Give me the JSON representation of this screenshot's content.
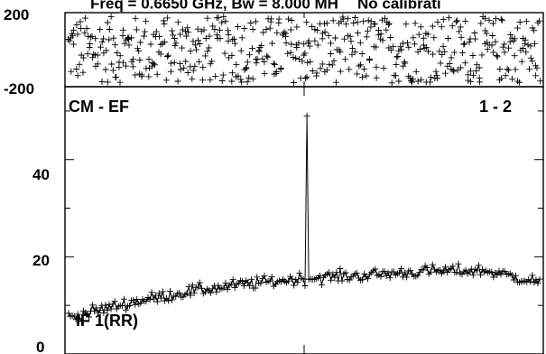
{
  "header": {
    "title": "Freq = 0.6650 GHz, Bw = 8.000 MH",
    "note": "No calibrati"
  },
  "chart_data": [
    {
      "type": "scatter",
      "panel": "phase",
      "ylim": [
        -200,
        200
      ],
      "y_tick_labels": [
        "200",
        "-200"
      ],
      "x_channels": 256,
      "phase_spread": 180,
      "grid": false
    },
    {
      "type": "line",
      "panel": "amplitude",
      "ylim": [
        0,
        55
      ],
      "y_tick_labels": [
        "0",
        "20",
        "40"
      ],
      "baseline_label": "CM - EF",
      "polarization_label": "IF 1(RR)",
      "pair_label": "1 - 2",
      "x_channels": 256,
      "amplitude_curve": [
        {
          "channel": 0,
          "value": 7.5
        },
        {
          "channel": 32,
          "value": 10.5
        },
        {
          "channel": 64,
          "value": 12.8
        },
        {
          "channel": 96,
          "value": 14.4
        },
        {
          "channel": 128,
          "value": 15.6
        },
        {
          "channel": 160,
          "value": 16.2
        },
        {
          "channel": 192,
          "value": 17.0
        },
        {
          "channel": 224,
          "value": 17.2
        },
        {
          "channel": 256,
          "value": 14.8
        }
      ],
      "spike": {
        "channel": 129,
        "peak": 49,
        "spike_top": 57
      },
      "noise": 0.9,
      "grid": false
    }
  ]
}
